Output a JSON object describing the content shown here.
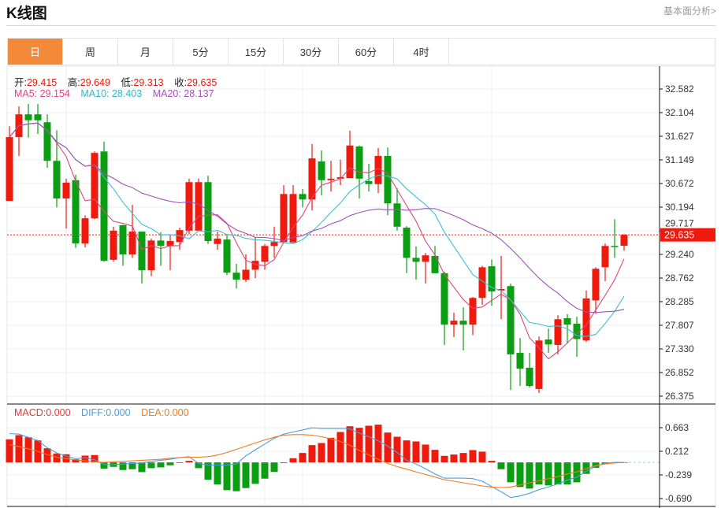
{
  "header": {
    "title": "K线图",
    "fundamental_link": "基本面分析>"
  },
  "tabs": [
    {
      "label": "日",
      "active": true
    },
    {
      "label": "周"
    },
    {
      "label": "月"
    },
    {
      "label": "5分"
    },
    {
      "label": "15分"
    },
    {
      "label": "30分"
    },
    {
      "label": "60分"
    },
    {
      "label": "4时"
    }
  ],
  "ohlc_info": {
    "open_label": "开:",
    "open": "29.415",
    "high_label": "高:",
    "high": "29.649",
    "low_label": "低:",
    "low": "29.313",
    "close_label": "收:",
    "close": "29.635"
  },
  "ma_info": {
    "ma5": "MA5: 29.154",
    "ma10": "MA10: 28.403",
    "ma20": "MA20: 28.137"
  },
  "macd_info": {
    "macd": "MACD:0.000",
    "diff": "DIFF:0.000",
    "dea": "DEA:0.000"
  },
  "colors": {
    "up": "#ee1a0e",
    "down": "#0b9e12",
    "ma5": "#e0457e",
    "ma10": "#3cc0d0",
    "ma20": "#a250b8",
    "diff": "#4a9ee0",
    "dea": "#f07a20",
    "active_tab": "#f28a3a"
  },
  "chart_data": [
    {
      "type": "candlestick",
      "title": "K线图",
      "ylim": [
        26.375,
        32.582
      ],
      "yticks": [
        "32.582",
        "32.104",
        "31.627",
        "31.149",
        "30.672",
        "30.194",
        "29.717",
        "29.240",
        "28.762",
        "28.285",
        "27.807",
        "27.330",
        "26.852",
        "26.375"
      ],
      "current_price": "29.635",
      "fields": [
        "open",
        "close",
        "high",
        "low"
      ],
      "candles": [
        [
          30.32,
          31.61,
          31.83,
          30.32
        ],
        [
          31.61,
          32.07,
          32.23,
          31.23
        ],
        [
          32.07,
          31.95,
          32.28,
          31.6
        ],
        [
          32.07,
          31.95,
          32.28,
          31.67
        ],
        [
          31.91,
          31.13,
          32.07,
          30.99
        ],
        [
          31.13,
          30.37,
          31.75,
          30.19
        ],
        [
          30.37,
          30.69,
          30.77,
          29.76
        ],
        [
          30.74,
          29.46,
          30.85,
          29.37
        ],
        [
          29.46,
          29.97,
          30.03,
          29.38
        ],
        [
          29.97,
          31.29,
          31.32,
          29.95
        ],
        [
          31.32,
          29.11,
          31.52,
          29.09
        ],
        [
          29.13,
          29.72,
          29.8,
          29.09
        ],
        [
          29.83,
          29.24,
          29.84,
          29.01
        ],
        [
          29.24,
          29.7,
          30.24,
          29.17
        ],
        [
          29.7,
          28.92,
          29.7,
          28.65
        ],
        [
          28.92,
          29.52,
          29.56,
          28.8
        ],
        [
          29.52,
          29.41,
          29.69,
          29.01
        ],
        [
          29.41,
          29.51,
          29.64,
          28.92
        ],
        [
          29.49,
          29.73,
          29.78,
          29.33
        ],
        [
          29.72,
          30.7,
          30.77,
          29.65
        ],
        [
          29.72,
          30.7,
          30.77,
          29.72
        ],
        [
          30.7,
          29.51,
          30.83,
          29.45
        ],
        [
          29.45,
          29.56,
          29.7,
          29.33
        ],
        [
          29.54,
          28.87,
          29.65,
          28.82
        ],
        [
          28.87,
          28.73,
          29.05,
          28.55
        ],
        [
          28.73,
          28.93,
          29.24,
          28.68
        ],
        [
          28.93,
          29.11,
          29.59,
          28.76
        ],
        [
          29.09,
          29.41,
          29.45,
          28.93
        ],
        [
          29.41,
          29.49,
          29.8,
          29.17
        ],
        [
          29.49,
          30.46,
          30.64,
          29.48
        ],
        [
          29.48,
          30.46,
          30.64,
          29.48
        ],
        [
          30.46,
          30.35,
          30.56,
          30.19
        ],
        [
          30.35,
          31.18,
          31.47,
          30.13
        ],
        [
          31.12,
          30.74,
          31.34,
          30.43
        ],
        [
          30.74,
          30.77,
          31.13,
          30.51
        ],
        [
          30.77,
          30.8,
          31.15,
          30.64
        ],
        [
          30.78,
          31.44,
          31.74,
          30.78
        ],
        [
          31.42,
          30.77,
          31.44,
          30.37
        ],
        [
          30.72,
          30.66,
          31.07,
          30.51
        ],
        [
          30.66,
          31.23,
          31.39,
          30.48
        ],
        [
          31.23,
          30.27,
          31.4,
          30.03
        ],
        [
          30.27,
          29.8,
          30.58,
          29.72
        ],
        [
          29.78,
          29.17,
          29.81,
          28.86
        ],
        [
          29.17,
          29.09,
          29.4,
          28.73
        ],
        [
          29.09,
          29.22,
          29.27,
          28.65
        ],
        [
          29.21,
          28.86,
          29.41,
          28.86
        ],
        [
          28.86,
          27.82,
          28.89,
          27.41
        ],
        [
          27.82,
          27.9,
          28.06,
          27.57
        ],
        [
          27.9,
          27.82,
          28.17,
          27.3
        ],
        [
          27.82,
          28.36,
          28.38,
          27.61
        ],
        [
          28.36,
          28.98,
          29.01,
          28.22
        ],
        [
          29.0,
          28.49,
          29.14,
          28.2
        ],
        [
          28.51,
          28.54,
          29.21,
          27.93
        ],
        [
          28.6,
          27.22,
          28.65,
          26.5
        ],
        [
          27.25,
          26.93,
          27.55,
          26.58
        ],
        [
          26.95,
          26.58,
          27.25,
          26.55
        ],
        [
          26.52,
          27.5,
          27.58,
          26.44
        ],
        [
          27.52,
          27.42,
          27.74,
          27.25
        ],
        [
          27.41,
          27.93,
          28.01,
          27.22
        ],
        [
          27.95,
          27.82,
          28.03,
          27.44
        ],
        [
          27.84,
          27.53,
          27.98,
          27.17
        ],
        [
          27.5,
          28.35,
          28.51,
          27.47
        ],
        [
          28.31,
          28.95,
          28.98,
          28.04
        ],
        [
          28.98,
          29.41,
          29.46,
          28.7
        ],
        [
          29.41,
          29.4,
          29.95,
          29.17
        ],
        [
          29.415,
          29.635,
          29.649,
          29.313
        ]
      ],
      "moving_averages": [
        "MA5",
        "MA10",
        "MA20"
      ]
    },
    {
      "type": "bar+line",
      "title": "MACD",
      "ylim": [
        -0.69,
        0.663
      ],
      "yticks": [
        "0.663",
        "0.212",
        "-0.239",
        "-0.690"
      ],
      "macd": [
        0.44,
        0.52,
        0.48,
        0.42,
        0.27,
        0.17,
        0.155,
        0.06,
        0.13,
        0.14,
        -0.12,
        -0.085,
        -0.145,
        -0.13,
        -0.185,
        -0.11,
        -0.095,
        -0.055,
        -0.01,
        0.03,
        -0.11,
        -0.33,
        -0.42,
        -0.53,
        -0.55,
        -0.49,
        -0.41,
        -0.31,
        -0.18,
        0.0,
        0.08,
        0.18,
        0.33,
        0.37,
        0.47,
        0.58,
        0.69,
        0.66,
        0.7,
        0.72,
        0.57,
        0.49,
        0.42,
        0.4,
        0.34,
        0.24,
        0.125,
        0.15,
        0.18,
        0.235,
        0.205,
        0.03,
        -0.13,
        -0.38,
        -0.47,
        -0.5,
        -0.42,
        -0.44,
        -0.42,
        -0.42,
        -0.38,
        -0.22,
        -0.105,
        -0.035,
        -0.015,
        -0.005
      ],
      "diff": [
        0.55,
        0.54,
        0.48,
        0.42,
        0.28,
        0.18,
        0.12,
        0.07,
        0.09,
        0.05,
        -0.04,
        -0.04,
        -0.03,
        -0.02,
        -0.01,
        0.02,
        0.04,
        0.06,
        0.09,
        0.11,
        -0.02,
        -0.05,
        -0.05,
        -0.05,
        -0.03,
        0.125,
        0.24,
        0.35,
        0.46,
        0.54,
        0.58,
        0.62,
        0.66,
        0.65,
        0.65,
        0.65,
        0.64,
        0.56,
        0.49,
        0.41,
        0.31,
        0.19,
        0.04,
        -0.03,
        -0.12,
        -0.22,
        -0.3,
        -0.3,
        -0.3,
        -0.31,
        -0.36,
        -0.46,
        -0.56,
        -0.67,
        -0.64,
        -0.59,
        -0.52,
        -0.47,
        -0.41,
        -0.34,
        -0.28,
        -0.17,
        -0.07,
        -0.02,
        0.0,
        0.0
      ],
      "dea": [
        0.34,
        0.3,
        0.26,
        0.21,
        0.15,
        0.1,
        0.07,
        0.05,
        0.03,
        0.01,
        0.0,
        0.01,
        0.02,
        0.03,
        0.04,
        0.05,
        0.06,
        0.08,
        0.09,
        0.1,
        0.1,
        0.11,
        0.14,
        0.19,
        0.25,
        0.31,
        0.37,
        0.43,
        0.48,
        0.52,
        0.53,
        0.53,
        0.52,
        0.49,
        0.45,
        0.4,
        0.33,
        0.23,
        0.14,
        0.06,
        -0.02,
        -0.08,
        -0.13,
        -0.18,
        -0.23,
        -0.28,
        -0.33,
        -0.36,
        -0.39,
        -0.42,
        -0.45,
        -0.47,
        -0.48,
        -0.47,
        -0.43,
        -0.39,
        -0.35,
        -0.31,
        -0.27,
        -0.22,
        -0.18,
        -0.12,
        -0.06,
        -0.03,
        -0.01,
        0.0
      ]
    }
  ]
}
